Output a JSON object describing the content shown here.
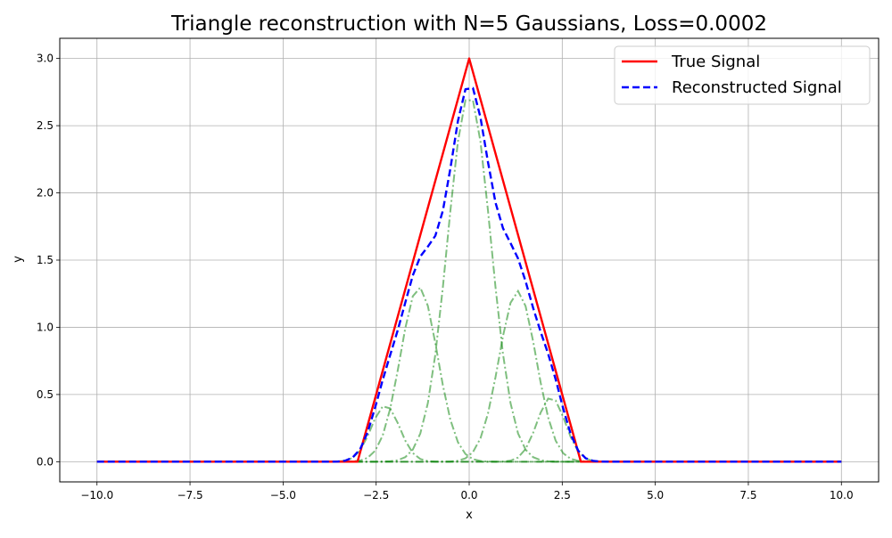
{
  "chart_data": {
    "type": "line",
    "title": "Triangle reconstruction with N=5 Gaussians, Loss=0.0002",
    "xlabel": "x",
    "ylabel": "y",
    "xlim": [
      -11,
      11
    ],
    "ylim": [
      -0.15,
      3.15
    ],
    "xticks": [
      -10,
      -7.5,
      -5,
      -2.5,
      0,
      2.5,
      5,
      7.5,
      10
    ],
    "xtick_labels": [
      "−10.0",
      "−7.5",
      "−5.0",
      "−2.5",
      "0.0",
      "2.5",
      "5.0",
      "7.5",
      "10.0"
    ],
    "yticks": [
      0,
      0.5,
      1,
      1.5,
      2,
      2.5,
      3
    ],
    "ytick_labels": [
      "0.0",
      "0.5",
      "1.0",
      "1.5",
      "2.0",
      "2.5",
      "3.0"
    ],
    "grid": true,
    "legend_position": "top-right",
    "x_domain": [
      -10,
      10
    ],
    "series": [
      {
        "name": "True Signal",
        "color": "#ff0000",
        "style": "solid",
        "points": [
          [
            -10,
            0
          ],
          [
            -3,
            0
          ],
          [
            0,
            3
          ],
          [
            3,
            0
          ],
          [
            10,
            0
          ]
        ]
      },
      {
        "name": "Reconstructed Signal",
        "color": "#0000ff",
        "style": "dashed",
        "function": "sum_of_components"
      }
    ],
    "components": {
      "color": "#008000",
      "style": "dashdot",
      "gaussians": [
        {
          "amplitude": 0.42,
          "mu": -2.25,
          "sigma": 0.38
        },
        {
          "amplitude": 1.3,
          "mu": -1.35,
          "sigma": 0.5
        },
        {
          "amplitude": 2.73,
          "mu": 0.0,
          "sigma": 0.58
        },
        {
          "amplitude": 1.27,
          "mu": 1.3,
          "sigma": 0.5
        },
        {
          "amplitude": 0.48,
          "mu": 2.2,
          "sigma": 0.38
        }
      ]
    }
  }
}
